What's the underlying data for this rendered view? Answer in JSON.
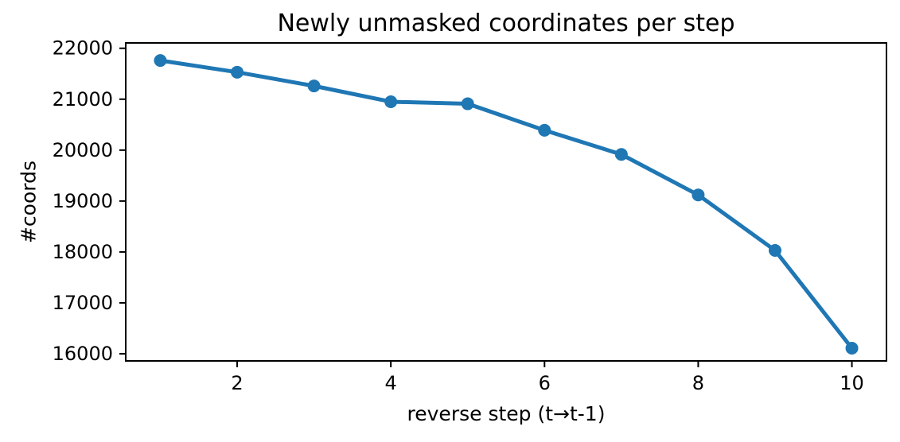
{
  "chart_data": {
    "type": "line",
    "title": "Newly unmasked coordinates per step",
    "xlabel": "reverse step (t→t-1)",
    "ylabel": "#coords",
    "x": [
      1,
      2,
      3,
      4,
      5,
      6,
      7,
      8,
      9,
      10
    ],
    "series": [
      {
        "name": "newly unmasked coordinates",
        "values": [
          21760,
          21530,
          21260,
          20950,
          20910,
          20390,
          19915,
          19120,
          18030,
          16110
        ]
      }
    ],
    "x_ticks": [
      2,
      4,
      6,
      8,
      10
    ],
    "y_ticks": [
      16000,
      17000,
      18000,
      19000,
      20000,
      21000,
      22000
    ],
    "xlim": [
      0.55,
      10.45
    ],
    "ylim": [
      15860,
      22105
    ],
    "grid": false,
    "legend": false,
    "marker": "circle",
    "line_color": "#1f77b4",
    "axis_color": "#000000",
    "background_color": "#ffffff"
  }
}
